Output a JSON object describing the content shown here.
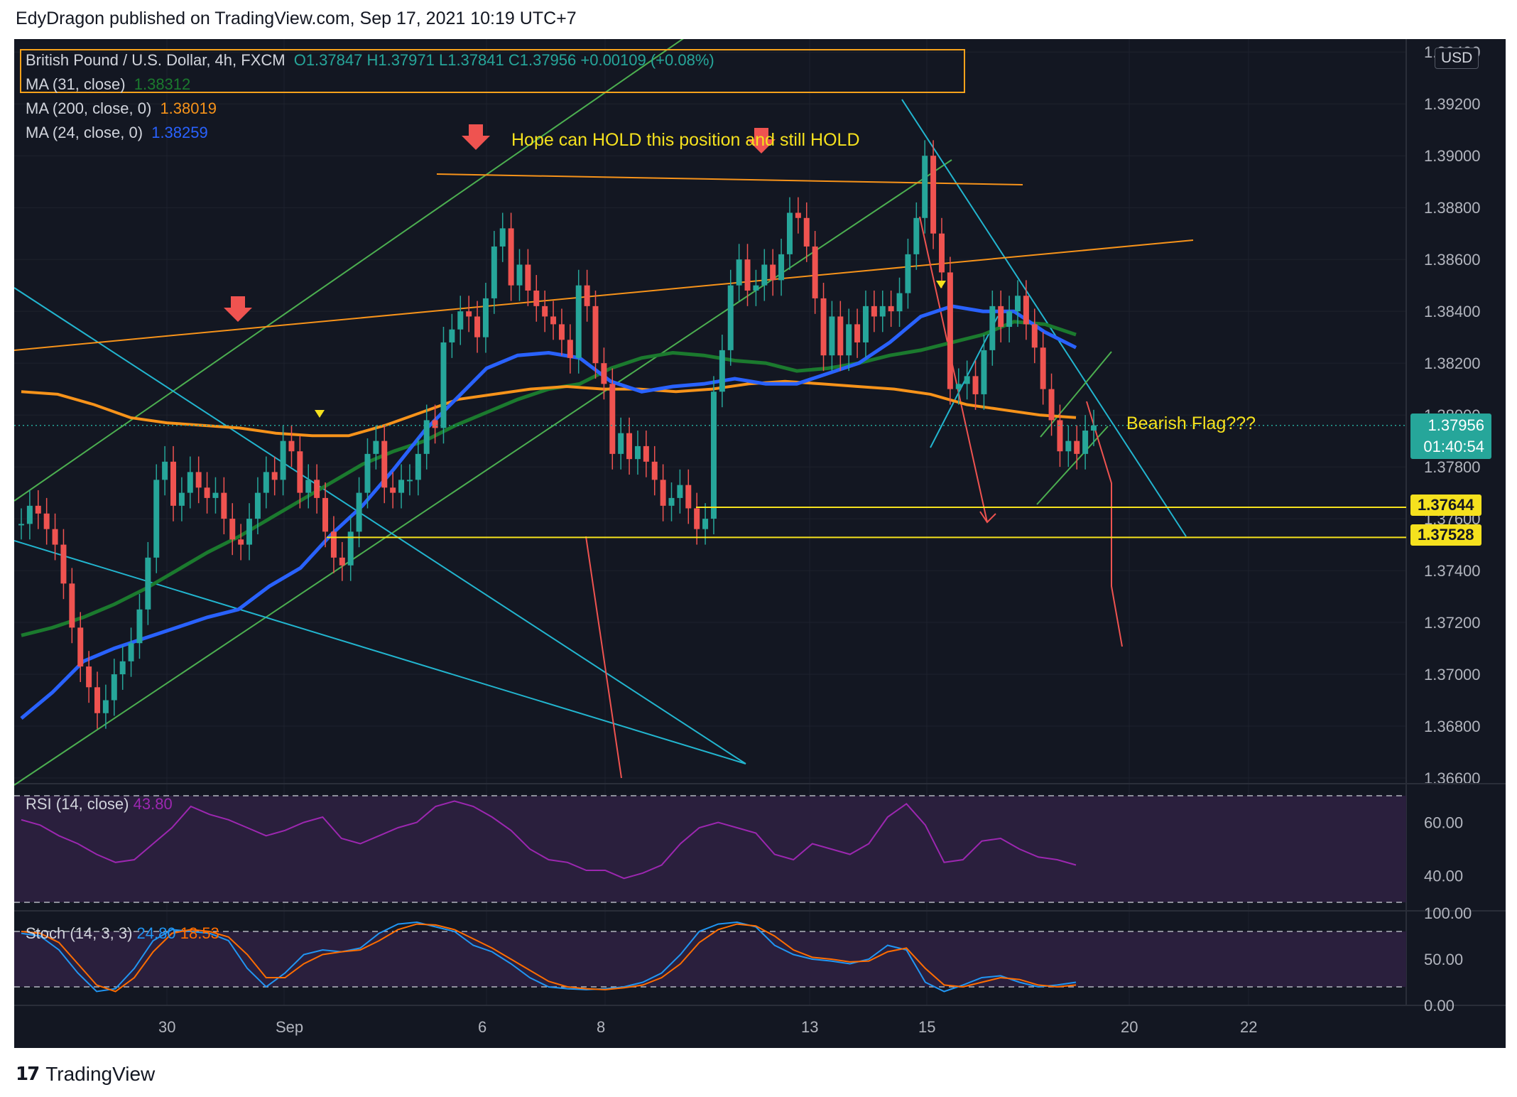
{
  "header": {
    "published": "EdyDragon published on TradingView.com, Sep 17, 2021 10:19 UTC+7"
  },
  "footer": {
    "brand": "TradingView",
    "logo_glyph": "17"
  },
  "legend": {
    "symbol": "British Pound / U.S. Dollar, 4h, FXCM",
    "ohlc": "O1.37847  H1.37971  L1.37841  C1.37956  +0.00109 (+0.08%)",
    "ma1_label": "MA (31, close)",
    "ma1_value": "1.38312",
    "ma2_label": "MA (200, close, 0)",
    "ma2_value": "1.38019",
    "ma3_label": "MA (24, close, 0)",
    "ma3_value": "1.38259"
  },
  "currency": "USD",
  "price_tags": {
    "last": "1.37956",
    "countdown": "01:40:54",
    "level1": "1.37644",
    "level2": "1.37528"
  },
  "annotations": {
    "hold": "Hope can HOLD this position and still HOLD",
    "flag": "Bearish Flag???"
  },
  "rsi": {
    "label": "RSI (14, close)",
    "value": "43.80"
  },
  "stoch": {
    "label": "Stoch (14, 3, 3)",
    "k": "24.80",
    "d": "18.53"
  },
  "colors": {
    "background": "#131722",
    "up": "#26a69a",
    "down": "#ef5350",
    "ma31": "#1b7a2e",
    "ma200": "#f7931a",
    "ma24": "#2962ff",
    "rsi": "#9c27b0",
    "stoch_k": "#2196f3",
    "stoch_d": "#ff6d00",
    "cyan": "#22b5cf",
    "trend_green": "#4caf50",
    "yellow": "#f5e11e"
  },
  "chart_data": [
    {
      "type": "candlestick",
      "title": "British Pound / U.S. Dollar, 4h, FXCM",
      "ylim": [
        1.366,
        1.3945
      ],
      "y_ticks": [
        "1.36600",
        "1.36800",
        "1.37000",
        "1.37200",
        "1.37400",
        "1.37600",
        "1.37800",
        "1.38000",
        "1.38200",
        "1.38400",
        "1.38600",
        "1.38800",
        "1.39000",
        "1.39200",
        "1.39400"
      ],
      "x_ticks": [
        "30",
        "Sep",
        "6",
        "8",
        "13",
        "15",
        "20",
        "22"
      ],
      "horizontal_levels": [
        1.37644,
        1.37528
      ],
      "closes": [
        1.3758,
        1.3765,
        1.3762,
        1.3756,
        1.375,
        1.3735,
        1.3718,
        1.3703,
        1.3695,
        1.3685,
        1.369,
        1.37,
        1.3705,
        1.3712,
        1.3725,
        1.3745,
        1.3775,
        1.3782,
        1.3765,
        1.377,
        1.3778,
        1.3772,
        1.3768,
        1.377,
        1.376,
        1.3752,
        1.375,
        1.376,
        1.377,
        1.3778,
        1.3775,
        1.379,
        1.3786,
        1.377,
        1.3775,
        1.3768,
        1.3755,
        1.3745,
        1.3742,
        1.3755,
        1.377,
        1.3785,
        1.379,
        1.3772,
        1.377,
        1.3775,
        1.3775,
        1.3785,
        1.3798,
        1.3795,
        1.3828,
        1.3833,
        1.384,
        1.3838,
        1.383,
        1.3845,
        1.3865,
        1.3872,
        1.385,
        1.3858,
        1.3848,
        1.3842,
        1.3838,
        1.3835,
        1.3829,
        1.3822,
        1.385,
        1.3842,
        1.382,
        1.3812,
        1.3785,
        1.3793,
        1.3783,
        1.3788,
        1.3782,
        1.3775,
        1.3765,
        1.3768,
        1.3773,
        1.3764,
        1.3756,
        1.376,
        1.3809,
        1.3825,
        1.385,
        1.386,
        1.3848,
        1.385,
        1.3858,
        1.3852,
        1.3862,
        1.3878,
        1.3876,
        1.3865,
        1.3845,
        1.3823,
        1.3838,
        1.3823,
        1.3835,
        1.3828,
        1.3842,
        1.3838,
        1.3842,
        1.384,
        1.3847,
        1.3862,
        1.3876,
        1.39,
        1.387,
        1.3855,
        1.381,
        1.3812,
        1.3815,
        1.3808,
        1.3825,
        1.3842,
        1.3834,
        1.384,
        1.3846,
        1.3835,
        1.3826,
        1.381,
        1.3798,
        1.3786,
        1.379,
        1.3785,
        1.3794,
        1.3796
      ],
      "ma31": [
        1.3715,
        1.3718,
        1.3722,
        1.3727,
        1.3733,
        1.374,
        1.3747,
        1.3753,
        1.376,
        1.3767,
        1.3774,
        1.3781,
        1.3786,
        1.379,
        1.3796,
        1.3801,
        1.3806,
        1.381,
        1.3812,
        1.3818,
        1.3822,
        1.3824,
        1.3823,
        1.3821,
        1.382,
        1.3817,
        1.3818,
        1.382,
        1.3823,
        1.3825,
        1.3828,
        1.3831,
        1.3836,
        1.3835,
        1.3831
      ],
      "ma200": [
        1.3809,
        1.3808,
        1.3804,
        1.3799,
        1.3797,
        1.3796,
        1.3795,
        1.3793,
        1.3792,
        1.3792,
        1.3796,
        1.3801,
        1.3806,
        1.3808,
        1.381,
        1.3811,
        1.381,
        1.381,
        1.3809,
        1.381,
        1.3812,
        1.3813,
        1.3812,
        1.3811,
        1.381,
        1.3808,
        1.3804,
        1.3802,
        1.38,
        1.3799
      ],
      "ma24": [
        1.3683,
        1.3693,
        1.3705,
        1.371,
        1.3714,
        1.3718,
        1.3722,
        1.3725,
        1.3734,
        1.3741,
        1.3754,
        1.3765,
        1.3779,
        1.3794,
        1.3806,
        1.3818,
        1.3823,
        1.3824,
        1.3822,
        1.3813,
        1.3809,
        1.3811,
        1.3812,
        1.3814,
        1.3812,
        1.3812,
        1.3816,
        1.382,
        1.3828,
        1.3838,
        1.3842,
        1.384,
        1.384,
        1.3832,
        1.3826
      ]
    },
    {
      "type": "line",
      "title": "RSI (14, close)",
      "ylim": [
        30,
        70
      ],
      "y_ticks": [
        "40.00",
        "60.00"
      ],
      "band": [
        30,
        70
      ],
      "values": [
        61,
        59,
        55,
        52,
        48,
        45,
        46,
        52,
        58,
        66,
        63,
        61,
        58,
        55,
        57,
        60,
        62,
        54,
        52,
        55,
        58,
        60,
        66,
        68,
        66,
        62,
        57,
        50,
        46,
        45,
        42,
        42,
        39,
        41,
        44,
        52,
        58,
        60,
        58,
        56,
        48,
        46,
        52,
        50,
        48,
        52,
        62,
        67,
        59,
        45,
        46,
        53,
        54,
        50,
        47,
        46,
        44
      ]
    },
    {
      "type": "line",
      "title": "Stoch (14, 3, 3)",
      "ylim": [
        0,
        100
      ],
      "y_ticks": [
        "0.00",
        "50.00",
        "100.00"
      ],
      "band": [
        20,
        80
      ],
      "series": [
        {
          "name": "24.80",
          "values": [
            78,
            75,
            60,
            35,
            15,
            18,
            40,
            70,
            82,
            80,
            78,
            70,
            40,
            20,
            35,
            55,
            60,
            58,
            62,
            78,
            88,
            90,
            85,
            80,
            65,
            58,
            45,
            30,
            20,
            18,
            17,
            18,
            20,
            25,
            35,
            55,
            80,
            88,
            90,
            85,
            65,
            55,
            50,
            48,
            45,
            50,
            65,
            60,
            25,
            15,
            22,
            30,
            32,
            25,
            20,
            22,
            25
          ]
        },
        {
          "name": "18.53",
          "values": [
            80,
            78,
            68,
            45,
            22,
            15,
            30,
            58,
            78,
            82,
            80,
            74,
            55,
            30,
            30,
            45,
            55,
            58,
            60,
            70,
            82,
            88,
            87,
            82,
            72,
            62,
            50,
            38,
            26,
            20,
            18,
            17,
            19,
            22,
            30,
            45,
            68,
            82,
            88,
            86,
            75,
            60,
            52,
            50,
            47,
            48,
            58,
            62,
            40,
            22,
            20,
            25,
            30,
            28,
            22,
            20,
            22
          ]
        }
      ]
    }
  ]
}
